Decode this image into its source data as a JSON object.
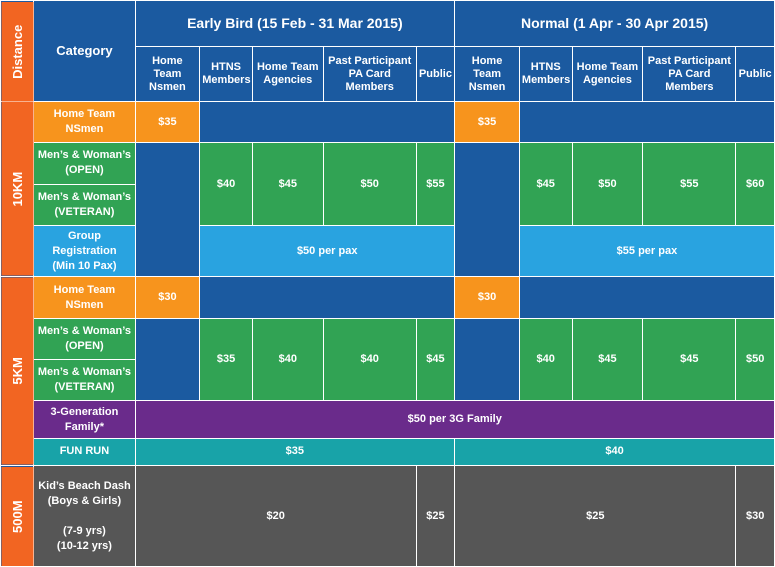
{
  "header": {
    "distance": "Distance",
    "category": "Category",
    "early_bird": "Early Bird (15 Feb - 31 Mar 2015)",
    "normal": "Normal (1 Apr - 30 Apr 2015)",
    "sub": [
      "Home\nTeam\nNsmen",
      "HTNS\nMembers",
      "Home Team\nAgencies",
      "Past Participant\nPA Card\nMembers",
      "Public"
    ]
  },
  "distances": [
    "10KM",
    "5KM",
    "500M"
  ],
  "categories": {
    "ht_nsmen": "Home Team\nNSmen",
    "open": "Men’s & Woman’s\n(OPEN)",
    "veteran": "Men’s & Woman’s\n(VETERAN)",
    "group": "Group\nRegistration\n(Min 10 Pax)",
    "three_gen": "3-Generation\nFamily*",
    "fun_run": "FUN RUN",
    "kids": "Kid’s Beach Dash\n(Boys & Girls)\n\n(7-9 yrs)\n(10-12 yrs)"
  },
  "prices": {
    "10km": {
      "ht_nsmen_early": "$35",
      "ht_nsmen_normal": "$35",
      "early": [
        "$40",
        "$45",
        "$50",
        "$55"
      ],
      "normal": [
        "$45",
        "$50",
        "$55",
        "$60"
      ],
      "group_early": "$50 per pax",
      "group_normal": "$55 per pax"
    },
    "5km": {
      "ht_nsmen_early": "$30",
      "ht_nsmen_normal": "$30",
      "early": [
        "$35",
        "$40",
        "$40",
        "$45"
      ],
      "normal": [
        "$40",
        "$45",
        "$45",
        "$50"
      ],
      "three_gen": "$50 per 3G Family",
      "fun_run_early": "$35",
      "fun_run_normal": "$40"
    },
    "500m": {
      "early_main": "$20",
      "early_public": "$25",
      "normal_main": "$25",
      "normal_public": "$30"
    }
  },
  "colors": {
    "blue": "#1b5aa0",
    "orange": "#f7941d",
    "green": "#31a354",
    "lightblue": "#29a3e0",
    "purple": "#6a2b8b",
    "teal": "#18a3a8",
    "gray": "#565656",
    "redorange": "#f26522"
  }
}
